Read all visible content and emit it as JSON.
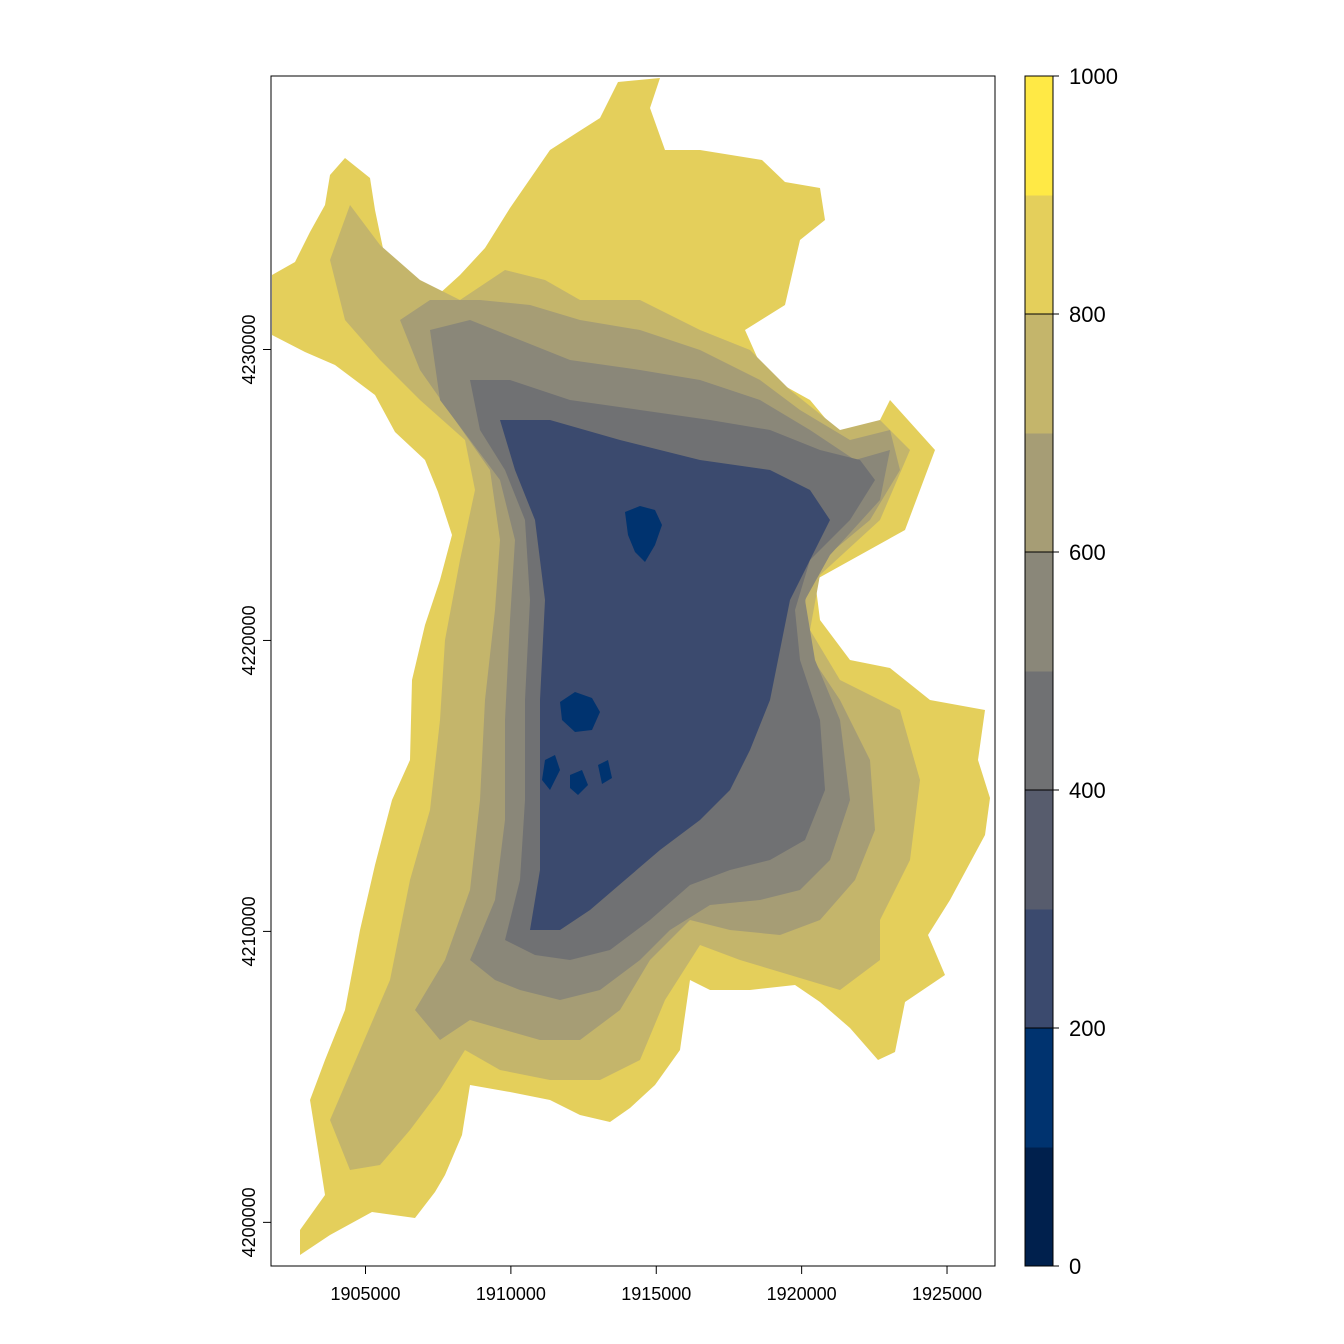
{
  "map": {
    "x_ticks": [
      "1905000",
      "1910000",
      "1915000",
      "1920000",
      "1925000"
    ],
    "y_ticks": [
      "4200000",
      "4210000",
      "4220000",
      "4230000"
    ],
    "x_tick_values": [
      1905000,
      1910000,
      1915000,
      1920000,
      1925000
    ],
    "y_tick_values": [
      4200000,
      4210000,
      4220000,
      4230000
    ],
    "xlim": [
      1901750,
      1926650
    ],
    "ylim": [
      4198500,
      4239400
    ]
  },
  "legend": {
    "labels": [
      "0",
      "200",
      "400",
      "600",
      "800",
      "1000"
    ],
    "colors": [
      "#00204d",
      "#00336f",
      "#3b4a6e",
      "#575c6d",
      "#707173",
      "#8a8779",
      "#a69d75",
      "#c4b56b",
      "#e4cf5b",
      "#ffe945"
    ],
    "range": [
      0,
      1000
    ]
  },
  "colors": {
    "lowland": "#3b4a6e",
    "deep": "#00336f",
    "upland": "#e4cf5b"
  }
}
